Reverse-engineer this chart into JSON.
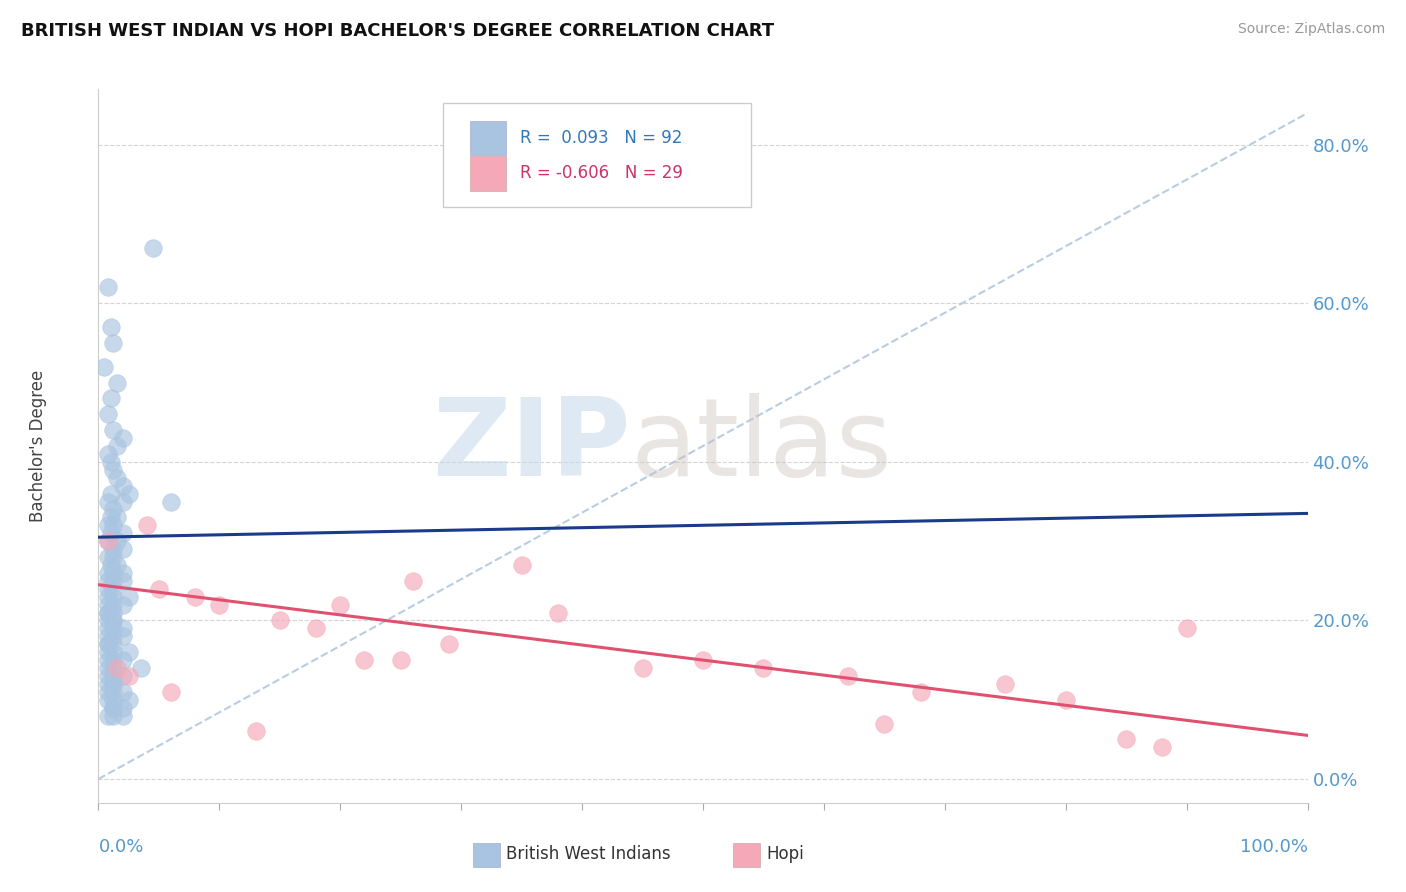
{
  "title": "BRITISH WEST INDIAN VS HOPI BACHELOR'S DEGREE CORRELATION CHART",
  "source": "Source: ZipAtlas.com",
  "ylabel": "Bachelor's Degree",
  "xlim": [
    0.0,
    1.0
  ],
  "ylim": [
    -0.03,
    0.87
  ],
  "blue_color": "#a8c4e0",
  "blue_line_color": "#1a3a8a",
  "pink_color": "#f4a8b8",
  "pink_line_color": "#e05070",
  "dashed_line_color": "#b0c8e0",
  "yticks": [
    0.0,
    0.2,
    0.4,
    0.6,
    0.8
  ],
  "ytick_labels": [
    "0.0%",
    "20.0%",
    "40.0%",
    "60.0%",
    "80.0%"
  ],
  "blue_scatter_x": [
    0.005,
    0.008,
    0.01,
    0.012,
    0.015,
    0.01,
    0.008,
    0.012,
    0.02,
    0.015,
    0.008,
    0.01,
    0.012,
    0.015,
    0.02,
    0.025,
    0.01,
    0.02,
    0.008,
    0.012,
    0.01,
    0.015,
    0.008,
    0.012,
    0.01,
    0.02,
    0.015,
    0.008,
    0.012,
    0.02,
    0.008,
    0.012,
    0.01,
    0.015,
    0.008,
    0.012,
    0.02,
    0.008,
    0.012,
    0.02,
    0.008,
    0.012,
    0.008,
    0.012,
    0.025,
    0.008,
    0.012,
    0.02,
    0.008,
    0.012,
    0.008,
    0.012,
    0.008,
    0.012,
    0.02,
    0.008,
    0.012,
    0.008,
    0.012,
    0.02,
    0.008,
    0.012,
    0.008,
    0.025,
    0.012,
    0.008,
    0.012,
    0.02,
    0.008,
    0.035,
    0.012,
    0.008,
    0.02,
    0.012,
    0.008,
    0.012,
    0.008,
    0.012,
    0.045,
    0.02,
    0.012,
    0.008,
    0.025,
    0.012,
    0.008,
    0.012,
    0.02,
    0.012,
    0.008,
    0.06,
    0.012,
    0.02
  ],
  "blue_scatter_y": [
    0.52,
    0.62,
    0.57,
    0.55,
    0.5,
    0.48,
    0.46,
    0.44,
    0.43,
    0.42,
    0.41,
    0.4,
    0.39,
    0.38,
    0.37,
    0.36,
    0.36,
    0.35,
    0.35,
    0.34,
    0.33,
    0.33,
    0.32,
    0.32,
    0.31,
    0.31,
    0.3,
    0.3,
    0.29,
    0.29,
    0.28,
    0.28,
    0.27,
    0.27,
    0.26,
    0.26,
    0.26,
    0.25,
    0.25,
    0.25,
    0.24,
    0.24,
    0.23,
    0.23,
    0.23,
    0.22,
    0.22,
    0.22,
    0.21,
    0.21,
    0.21,
    0.2,
    0.2,
    0.2,
    0.19,
    0.19,
    0.19,
    0.18,
    0.18,
    0.18,
    0.17,
    0.17,
    0.17,
    0.16,
    0.16,
    0.16,
    0.15,
    0.15,
    0.15,
    0.14,
    0.14,
    0.14,
    0.13,
    0.13,
    0.13,
    0.12,
    0.12,
    0.12,
    0.67,
    0.11,
    0.11,
    0.11,
    0.1,
    0.1,
    0.1,
    0.09,
    0.09,
    0.09,
    0.08,
    0.35,
    0.08,
    0.08
  ],
  "pink_scatter_x": [
    0.008,
    0.015,
    0.025,
    0.04,
    0.05,
    0.06,
    0.08,
    0.1,
    0.13,
    0.15,
    0.18,
    0.2,
    0.22,
    0.25,
    0.26,
    0.29,
    0.35,
    0.38,
    0.45,
    0.5,
    0.55,
    0.62,
    0.65,
    0.68,
    0.75,
    0.8,
    0.85,
    0.88,
    0.9
  ],
  "pink_scatter_y": [
    0.3,
    0.14,
    0.13,
    0.32,
    0.24,
    0.11,
    0.23,
    0.22,
    0.06,
    0.2,
    0.19,
    0.22,
    0.15,
    0.15,
    0.25,
    0.17,
    0.27,
    0.21,
    0.14,
    0.15,
    0.14,
    0.13,
    0.07,
    0.11,
    0.12,
    0.1,
    0.05,
    0.04,
    0.19
  ],
  "blue_trend_x": [
    0.0,
    1.0
  ],
  "blue_trend_y": [
    0.305,
    0.335
  ],
  "pink_trend_x": [
    0.0,
    1.0
  ],
  "pink_trend_y": [
    0.245,
    0.055
  ],
  "diag_line_x": [
    0.0,
    1.0
  ],
  "diag_line_y": [
    0.0,
    0.84
  ]
}
